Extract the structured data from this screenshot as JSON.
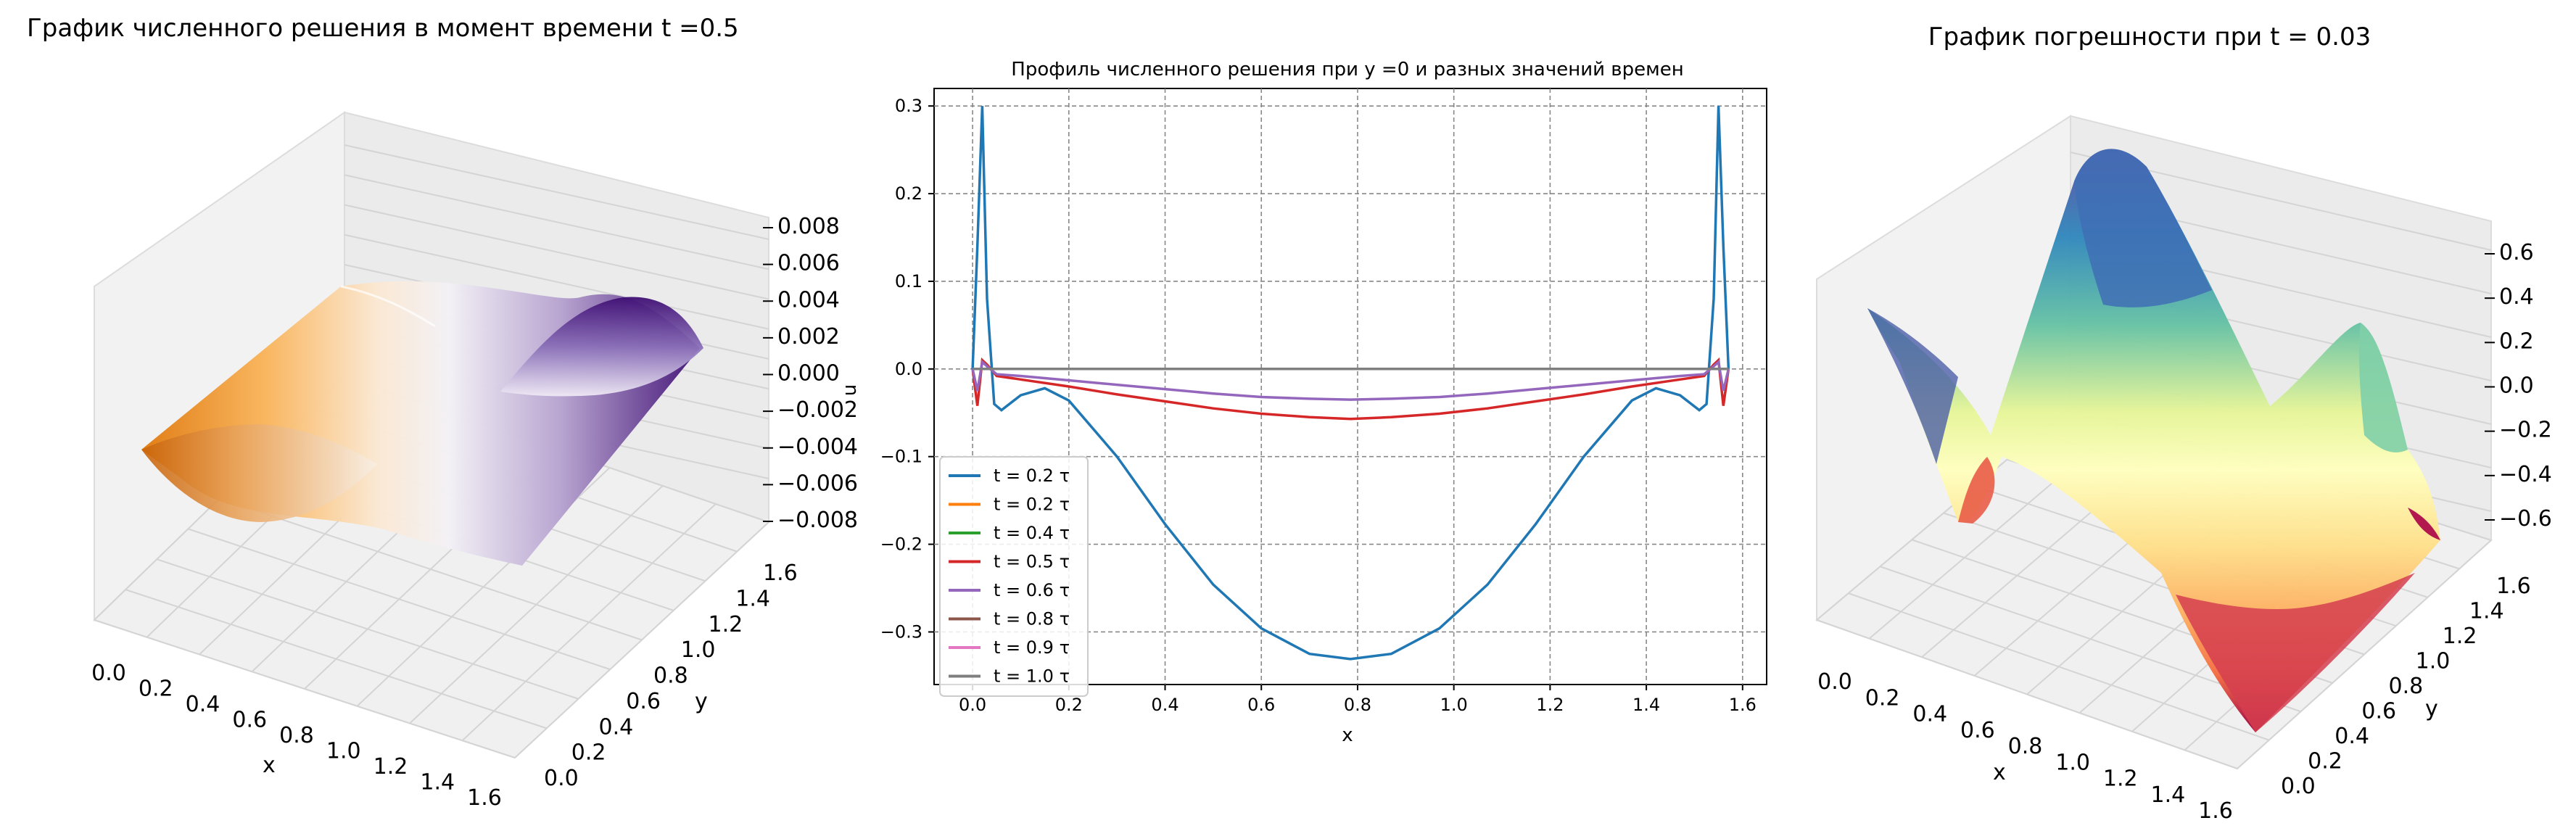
{
  "chart_data": [
    {
      "type": "surface3d",
      "title": "График численного решения в момент времени t =0.5",
      "xlabel": "x",
      "ylabel": "y",
      "xticks": [
        "0.0",
        "0.2",
        "0.4",
        "0.6",
        "0.8",
        "1.0",
        "1.2",
        "1.4",
        "1.6"
      ],
      "yticks": [
        "0.0",
        "0.2",
        "0.4",
        "0.6",
        "0.8",
        "1.0",
        "1.2",
        "1.4",
        "1.6"
      ],
      "zticks": [
        "0.008",
        "0.006",
        "0.004",
        "0.002",
        "0.000",
        "−0.002",
        "−0.004",
        "−0.006",
        "−0.008"
      ],
      "xlim": [
        0,
        1.6
      ],
      "ylim": [
        0,
        1.6
      ],
      "zlim": [
        -0.008,
        0.008
      ],
      "colormap": "PuOr",
      "colors": {
        "low": "#e07a10",
        "mid": "#f7f4f0",
        "high": "#3f0f74"
      }
    },
    {
      "type": "line",
      "title": "Профиль численного решения при y =0 и разных значений времен",
      "xlabel": "x",
      "ylabel": "u",
      "xlim": [
        -0.08,
        1.65
      ],
      "ylim": [
        -0.36,
        0.32
      ],
      "xticks": [
        "0.0",
        "0.2",
        "0.4",
        "0.6",
        "0.8",
        "1.0",
        "1.2",
        "1.4",
        "1.6"
      ],
      "yticks": [
        "0.3",
        "0.2",
        "0.1",
        "0.0",
        "−0.1",
        "−0.2",
        "−0.3"
      ],
      "grid": true,
      "legend_position": "lower-left",
      "series": [
        {
          "name": "t = 0.2 τ",
          "color": "#1f77b4",
          "x": [
            0,
            0.01,
            0.02,
            0.03,
            0.045,
            0.06,
            0.1,
            0.15,
            0.2,
            0.3,
            0.4,
            0.5,
            0.6,
            0.7,
            0.785,
            0.87,
            0.97,
            1.07,
            1.17,
            1.27,
            1.37,
            1.42,
            1.47,
            1.51,
            1.525,
            1.54,
            1.55,
            1.56,
            1.5708
          ],
          "y": [
            0,
            0.14,
            0.3,
            0.08,
            -0.04,
            -0.047,
            -0.03,
            -0.022,
            -0.036,
            -0.1,
            -0.177,
            -0.246,
            -0.296,
            -0.325,
            -0.331,
            -0.325,
            -0.296,
            -0.246,
            -0.177,
            -0.1,
            -0.036,
            -0.022,
            -0.03,
            -0.047,
            -0.04,
            0.08,
            0.3,
            0.14,
            0
          ]
        },
        {
          "name": "t = 0.2 τ",
          "color": "#ff7f0e",
          "x": [
            0,
            1.5708
          ],
          "y": [
            0,
            0
          ]
        },
        {
          "name": "t = 0.4 τ",
          "color": "#2ca02c",
          "x": [
            0,
            1.5708
          ],
          "y": [
            0,
            0
          ]
        },
        {
          "name": "t = 0.5 τ",
          "color": "#d62728",
          "x": [
            0,
            0.01,
            0.02,
            0.03,
            0.05,
            0.1,
            0.2,
            0.3,
            0.4,
            0.5,
            0.6,
            0.7,
            0.785,
            0.87,
            0.97,
            1.07,
            1.17,
            1.27,
            1.37,
            1.47,
            1.52,
            1.54,
            1.55,
            1.56,
            1.5708
          ],
          "y": [
            0,
            -0.042,
            0.01,
            0.005,
            -0.008,
            -0.012,
            -0.02,
            -0.029,
            -0.037,
            -0.045,
            -0.051,
            -0.055,
            -0.057,
            -0.055,
            -0.051,
            -0.045,
            -0.037,
            -0.029,
            -0.02,
            -0.012,
            -0.008,
            0.005,
            0.01,
            -0.042,
            0
          ]
        },
        {
          "name": "t = 0.6 τ",
          "color": "#9467bd",
          "x": [
            0,
            0.01,
            0.02,
            0.03,
            0.05,
            0.1,
            0.2,
            0.3,
            0.4,
            0.5,
            0.6,
            0.7,
            0.785,
            0.87,
            0.97,
            1.07,
            1.17,
            1.27,
            1.37,
            1.47,
            1.52,
            1.54,
            1.55,
            1.56,
            1.5708
          ],
          "y": [
            0,
            -0.025,
            0.008,
            0.003,
            -0.006,
            -0.008,
            -0.013,
            -0.018,
            -0.023,
            -0.028,
            -0.032,
            -0.034,
            -0.035,
            -0.034,
            -0.032,
            -0.028,
            -0.023,
            -0.018,
            -0.013,
            -0.008,
            -0.006,
            0.003,
            0.008,
            -0.025,
            0
          ]
        },
        {
          "name": "t = 0.8 τ",
          "color": "#8c564b",
          "x": [
            0,
            1.5708
          ],
          "y": [
            0,
            0
          ]
        },
        {
          "name": "t = 0.9 τ",
          "color": "#e377c2",
          "x": [
            0,
            1.5708
          ],
          "y": [
            0,
            0
          ]
        },
        {
          "name": "t = 1.0 τ",
          "color": "#7f7f7f",
          "x": [
            0,
            1.5708
          ],
          "y": [
            0,
            0
          ]
        }
      ]
    },
    {
      "type": "surface3d",
      "title": "График погрешности при t = 0.03",
      "xlabel": "x",
      "ylabel": "y",
      "xticks": [
        "0.0",
        "0.2",
        "0.4",
        "0.6",
        "0.8",
        "1.0",
        "1.2",
        "1.4",
        "1.6"
      ],
      "yticks": [
        "0.0",
        "0.2",
        "0.4",
        "0.6",
        "0.8",
        "1.0",
        "1.2",
        "1.4",
        "1.6"
      ],
      "zticks": [
        "0.6",
        "0.4",
        "0.2",
        "0.0",
        "−0.2",
        "−0.4",
        "−0.6"
      ],
      "xlim": [
        0,
        1.6
      ],
      "ylim": [
        0,
        1.6
      ],
      "zlim": [
        -0.7,
        0.7
      ],
      "colormap": "Spectral",
      "colors": {
        "low": "#9e0142",
        "mid": "#ffffbf",
        "high": "#5e4fa2"
      }
    }
  ]
}
